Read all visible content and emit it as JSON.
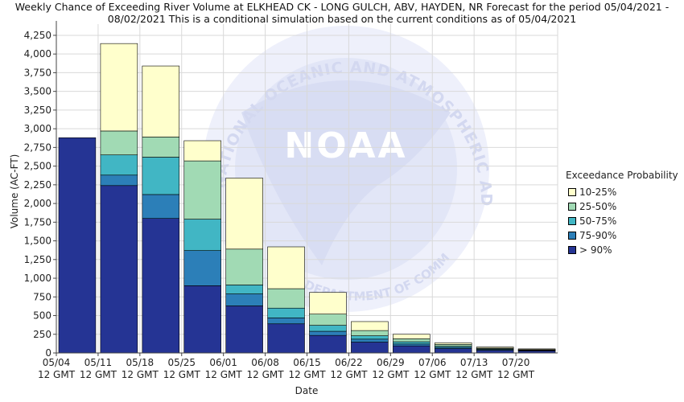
{
  "chart_data": {
    "type": "bar",
    "title_line1": "Weekly Chance of Exceeding River Volume at ELKHEAD CK - LONG GULCH, ABV, HAYDEN, NR Forecast for the period 05/04/2021 -",
    "title_line2": "08/02/2021 This is a conditional simulation based on the current conditions as of 05/04/2021",
    "xlabel": "Date",
    "ylabel": "Volume (AC-FT)",
    "ylim": [
      0,
      4400
    ],
    "yticks": [
      "0",
      "250",
      "500",
      "750",
      "1,000",
      "1,250",
      "1,500",
      "1,750",
      "2,000",
      "2,250",
      "2,500",
      "2,750",
      "3,000",
      "3,250",
      "3,500",
      "3,750",
      "4,000",
      "4,250"
    ],
    "x_tick_dates": [
      "05/04",
      "05/11",
      "05/18",
      "05/25",
      "06/01",
      "06/08",
      "06/15",
      "06/22",
      "06/29",
      "07/06",
      "07/13",
      "07/20"
    ],
    "x_tick_time": "12 GMT",
    "grid": true,
    "legend_title": "Exceedance Probability",
    "legend_position": "right",
    "series": [
      {
        "name": "> 90%",
        "color": "#253494",
        "values": [
          2880,
          2240,
          1800,
          900,
          630,
          390,
          235,
          145,
          95,
          58,
          35,
          28
        ]
      },
      {
        "name": "75-90%",
        "color": "#2c7fb8",
        "values": [
          2880,
          2380,
          2120,
          1370,
          790,
          470,
          290,
          185,
          120,
          75,
          45,
          35
        ]
      },
      {
        "name": "50-75%",
        "color": "#41b6c4",
        "values": [
          2880,
          2650,
          2620,
          1790,
          910,
          600,
          370,
          230,
          150,
          90,
          55,
          40
        ]
      },
      {
        "name": "25-50%",
        "color": "#a1dab4",
        "values": [
          2880,
          2970,
          2890,
          2570,
          1390,
          860,
          520,
          300,
          190,
          115,
          65,
          45
        ]
      },
      {
        "name": "10-25%",
        "color": "#ffffcc",
        "values": [
          2880,
          4140,
          3840,
          2840,
          2340,
          1420,
          810,
          420,
          250,
          135,
          80,
          55
        ]
      }
    ],
    "watermark": {
      "org_text": "NATIONAL OCEANIC AND ATMOSPHERIC ADMINISTRATION",
      "dept_text": "U.S. DEPARTMENT OF COMMERCE",
      "logo_text": "NOAA"
    }
  }
}
